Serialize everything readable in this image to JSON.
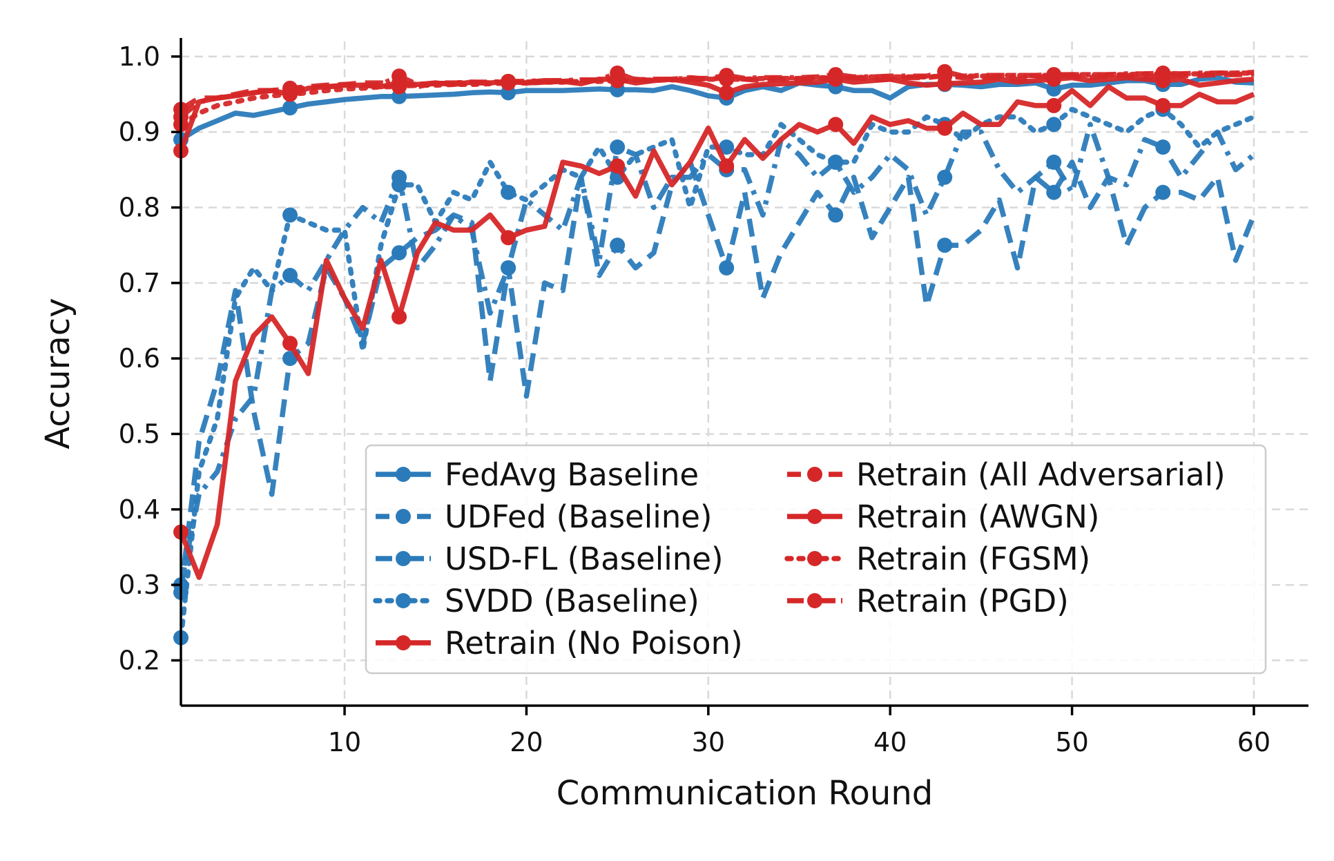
{
  "chart_data": {
    "type": "line",
    "title": "",
    "xlabel": "Communication Round",
    "ylabel": "Accuracy",
    "xlim": [
      1,
      63
    ],
    "ylim": [
      0.14,
      1.02
    ],
    "xticks": [
      10,
      20,
      30,
      40,
      50,
      60
    ],
    "yticks": [
      0.2,
      0.3,
      0.4,
      0.5,
      0.6,
      0.7,
      0.8,
      0.9,
      1.0
    ],
    "xtick_labels": [
      "10",
      "20",
      "30",
      "40",
      "50",
      "60"
    ],
    "ytick_labels": [
      "0.2",
      "0.3",
      "0.4",
      "0.5",
      "0.6",
      "0.7",
      "0.8",
      "0.9",
      "1.0"
    ],
    "grid": true,
    "legend_position": "lower-right",
    "colors": {
      "blue": "#2b7bba",
      "red": "#d62728",
      "grid": "#d9d9d9",
      "axis": "#000000"
    },
    "marker_every": 6,
    "x": [
      1,
      2,
      3,
      4,
      5,
      6,
      7,
      8,
      9,
      10,
      11,
      12,
      13,
      14,
      15,
      16,
      17,
      18,
      19,
      20,
      21,
      22,
      23,
      24,
      25,
      26,
      27,
      28,
      29,
      30,
      31,
      32,
      33,
      34,
      35,
      36,
      37,
      38,
      39,
      40,
      41,
      42,
      43,
      44,
      45,
      46,
      47,
      48,
      49,
      50,
      51,
      52,
      53,
      54,
      55,
      56,
      57,
      58,
      59,
      60
    ],
    "series": [
      {
        "name": "FedAvg Baseline",
        "color": "#2b7bba",
        "dash": "solid",
        "values": [
          0.89,
          0.905,
          0.915,
          0.925,
          0.922,
          0.927,
          0.932,
          0.937,
          0.94,
          0.943,
          0.945,
          0.947,
          0.947,
          0.948,
          0.949,
          0.95,
          0.952,
          0.953,
          0.952,
          0.955,
          0.955,
          0.955,
          0.956,
          0.957,
          0.956,
          0.956,
          0.955,
          0.96,
          0.955,
          0.948,
          0.945,
          0.955,
          0.96,
          0.955,
          0.965,
          0.962,
          0.96,
          0.955,
          0.955,
          0.945,
          0.96,
          0.963,
          0.963,
          0.962,
          0.96,
          0.963,
          0.963,
          0.965,
          0.957,
          0.962,
          0.962,
          0.965,
          0.968,
          0.968,
          0.963,
          0.963,
          0.97,
          0.972,
          0.966,
          0.965
        ]
      },
      {
        "name": "UDFed (Baseline)",
        "color": "#2b7bba",
        "dash": "dashed",
        "values": [
          0.29,
          0.49,
          0.57,
          0.69,
          0.53,
          0.42,
          0.6,
          0.62,
          0.72,
          0.68,
          0.62,
          0.72,
          0.74,
          0.76,
          0.77,
          0.79,
          0.78,
          0.57,
          0.72,
          0.55,
          0.7,
          0.69,
          0.84,
          0.71,
          0.75,
          0.72,
          0.74,
          0.83,
          0.86,
          0.79,
          0.72,
          0.82,
          0.68,
          0.74,
          0.78,
          0.82,
          0.79,
          0.84,
          0.76,
          0.8,
          0.84,
          0.67,
          0.75,
          0.75,
          0.77,
          0.81,
          0.72,
          0.84,
          0.82,
          0.86,
          0.8,
          0.84,
          0.75,
          0.8,
          0.82,
          0.82,
          0.81,
          0.84,
          0.73,
          0.79
        ]
      },
      {
        "name": "USD-FL (Baseline)",
        "color": "#2b7bba",
        "dash": "dashdot",
        "values": [
          0.3,
          0.42,
          0.45,
          0.52,
          0.55,
          0.69,
          0.71,
          0.69,
          0.73,
          0.77,
          0.8,
          0.78,
          0.84,
          0.72,
          0.75,
          0.79,
          0.77,
          0.66,
          0.72,
          0.81,
          0.79,
          0.77,
          0.84,
          0.73,
          0.88,
          0.87,
          0.8,
          0.84,
          0.84,
          0.87,
          0.85,
          0.85,
          0.79,
          0.89,
          0.87,
          0.84,
          0.86,
          0.82,
          0.84,
          0.87,
          0.85,
          0.79,
          0.84,
          0.9,
          0.9,
          0.85,
          0.82,
          0.84,
          0.86,
          0.82,
          0.91,
          0.84,
          0.83,
          0.89,
          0.88,
          0.84,
          0.87,
          0.9,
          0.85,
          0.87
        ]
      },
      {
        "name": "SVDD (Baseline)",
        "color": "#2b7bba",
        "dash": "dotted",
        "values": [
          0.23,
          0.45,
          0.52,
          0.68,
          0.72,
          0.69,
          0.79,
          0.78,
          0.77,
          0.77,
          0.61,
          0.75,
          0.83,
          0.83,
          0.78,
          0.82,
          0.81,
          0.86,
          0.82,
          0.81,
          0.83,
          0.85,
          0.84,
          0.88,
          0.84,
          0.87,
          0.88,
          0.89,
          0.8,
          0.88,
          0.88,
          0.87,
          0.87,
          0.91,
          0.89,
          0.87,
          0.86,
          0.86,
          0.91,
          0.9,
          0.9,
          0.92,
          0.91,
          0.89,
          0.91,
          0.92,
          0.92,
          0.9,
          0.91,
          0.93,
          0.92,
          0.91,
          0.9,
          0.92,
          0.93,
          0.91,
          0.88,
          0.9,
          0.91,
          0.92
        ]
      },
      {
        "name": "Retrain (No Poison)",
        "color": "#d62728",
        "dash": "solid",
        "values": [
          0.37,
          0.31,
          0.38,
          0.57,
          0.63,
          0.655,
          0.62,
          0.58,
          0.73,
          0.68,
          0.64,
          0.73,
          0.655,
          0.74,
          0.78,
          0.77,
          0.77,
          0.79,
          0.76,
          0.77,
          0.775,
          0.86,
          0.855,
          0.845,
          0.855,
          0.815,
          0.875,
          0.83,
          0.86,
          0.905,
          0.855,
          0.89,
          0.865,
          0.89,
          0.91,
          0.9,
          0.91,
          0.885,
          0.92,
          0.91,
          0.915,
          0.905,
          0.905,
          0.925,
          0.91,
          0.91,
          0.94,
          0.935,
          0.935,
          0.955,
          0.935,
          0.96,
          0.945,
          0.945,
          0.935,
          0.935,
          0.95,
          0.94,
          0.94,
          0.95
        ]
      },
      {
        "name": "Retrain (All Adversarial)",
        "color": "#d62728",
        "dash": "dashed",
        "values": [
          0.93,
          0.945,
          0.945,
          0.95,
          0.955,
          0.955,
          0.958,
          0.96,
          0.962,
          0.963,
          0.965,
          0.965,
          0.963,
          0.96,
          0.965,
          0.965,
          0.965,
          0.965,
          0.966,
          0.966,
          0.968,
          0.967,
          0.969,
          0.968,
          0.972,
          0.97,
          0.968,
          0.97,
          0.972,
          0.97,
          0.972,
          0.97,
          0.968,
          0.97,
          0.97,
          0.97,
          0.972,
          0.972,
          0.97,
          0.97,
          0.972,
          0.972,
          0.975,
          0.972,
          0.972,
          0.972,
          0.97,
          0.972,
          0.975,
          0.974,
          0.972,
          0.974,
          0.975,
          0.973,
          0.974,
          0.975,
          0.975,
          0.976,
          0.976,
          0.977
        ]
      },
      {
        "name": "Retrain (AWGN)",
        "color": "#d62728",
        "dash": "solid",
        "values": [
          0.875,
          0.94,
          0.945,
          0.948,
          0.952,
          0.955,
          0.95,
          0.958,
          0.96,
          0.962,
          0.962,
          0.96,
          0.965,
          0.963,
          0.965,
          0.963,
          0.966,
          0.965,
          0.967,
          0.965,
          0.966,
          0.967,
          0.964,
          0.97,
          0.97,
          0.965,
          0.968,
          0.97,
          0.966,
          0.962,
          0.952,
          0.96,
          0.963,
          0.964,
          0.965,
          0.966,
          0.97,
          0.966,
          0.968,
          0.97,
          0.965,
          0.962,
          0.964,
          0.965,
          0.966,
          0.97,
          0.966,
          0.968,
          0.97,
          0.972,
          0.968,
          0.97,
          0.972,
          0.97,
          0.968,
          0.97,
          0.962,
          0.965,
          0.968,
          0.97
        ]
      },
      {
        "name": "Retrain (FGSM)",
        "color": "#d62728",
        "dash": "dotted",
        "values": [
          0.91,
          0.925,
          0.935,
          0.94,
          0.945,
          0.948,
          0.95,
          0.952,
          0.955,
          0.957,
          0.958,
          0.96,
          0.96,
          0.962,
          0.962,
          0.963,
          0.963,
          0.964,
          0.965,
          0.965,
          0.966,
          0.966,
          0.967,
          0.967,
          0.968,
          0.968,
          0.969,
          0.969,
          0.97,
          0.97,
          0.97,
          0.97,
          0.971,
          0.971,
          0.971,
          0.972,
          0.972,
          0.972,
          0.973,
          0.973,
          0.973,
          0.973,
          0.974,
          0.974,
          0.974,
          0.975,
          0.975,
          0.975,
          0.975,
          0.976,
          0.976,
          0.976,
          0.976,
          0.977,
          0.977,
          0.977,
          0.977,
          0.978,
          0.978,
          0.978
        ]
      },
      {
        "name": "Retrain (PGD)",
        "color": "#d62728",
        "dash": "dashdot",
        "values": [
          0.92,
          0.94,
          0.945,
          0.948,
          0.952,
          0.955,
          0.957,
          0.958,
          0.96,
          0.961,
          0.962,
          0.963,
          0.974,
          0.963,
          0.964,
          0.965,
          0.966,
          0.966,
          0.967,
          0.967,
          0.968,
          0.968,
          0.969,
          0.969,
          0.978,
          0.969,
          0.97,
          0.97,
          0.971,
          0.971,
          0.975,
          0.971,
          0.972,
          0.972,
          0.972,
          0.973,
          0.976,
          0.973,
          0.973,
          0.974,
          0.974,
          0.974,
          0.98,
          0.974,
          0.975,
          0.975,
          0.975,
          0.975,
          0.976,
          0.976,
          0.976,
          0.976,
          0.977,
          0.977,
          0.978,
          0.977,
          0.978,
          0.978,
          0.978,
          0.979
        ]
      }
    ]
  }
}
